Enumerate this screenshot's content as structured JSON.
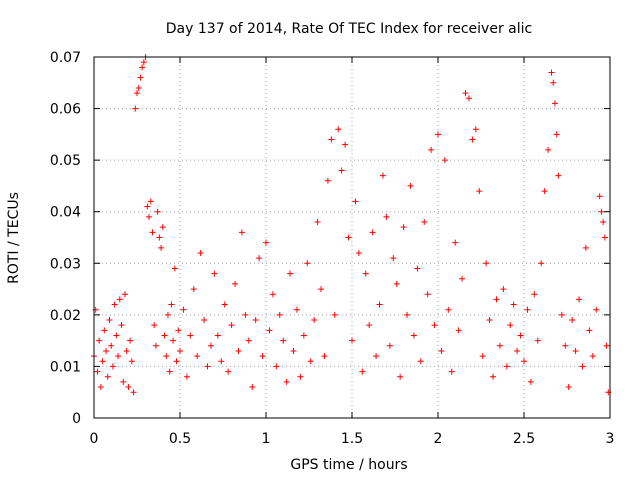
{
  "chart_data": {
    "type": "scatter",
    "title": "Day 137 of 2014, Rate Of TEC Index for receiver alic",
    "xlabel": "GPS time / hours",
    "ylabel": "ROTI / TECUs",
    "xlim": [
      0,
      3
    ],
    "ylim": [
      0,
      0.07
    ],
    "xticks": [
      0,
      0.5,
      1,
      1.5,
      2,
      2.5,
      3
    ],
    "xtick_labels": [
      "0",
      "0.5",
      "1",
      "1.5",
      "2",
      "2.5",
      "3"
    ],
    "yticks": [
      0,
      0.01,
      0.02,
      0.03,
      0.04,
      0.05,
      0.06,
      0.07
    ],
    "ytick_labels": [
      "0",
      "0.01",
      "0.02",
      "0.03",
      "0.04",
      "0.05",
      "0.06",
      "0.07"
    ],
    "grid": true,
    "marker": "+",
    "color": "#ff0000",
    "series": [
      {
        "name": "ROTI",
        "points": [
          [
            0.0,
            0.012
          ],
          [
            0.01,
            0.021
          ],
          [
            0.02,
            0.009
          ],
          [
            0.03,
            0.015
          ],
          [
            0.04,
            0.006
          ],
          [
            0.05,
            0.011
          ],
          [
            0.06,
            0.017
          ],
          [
            0.07,
            0.013
          ],
          [
            0.08,
            0.008
          ],
          [
            0.09,
            0.019
          ],
          [
            0.1,
            0.014
          ],
          [
            0.11,
            0.01
          ],
          [
            0.12,
            0.022
          ],
          [
            0.13,
            0.016
          ],
          [
            0.14,
            0.012
          ],
          [
            0.15,
            0.023
          ],
          [
            0.16,
            0.018
          ],
          [
            0.17,
            0.007
          ],
          [
            0.18,
            0.024
          ],
          [
            0.19,
            0.013
          ],
          [
            0.2,
            0.006
          ],
          [
            0.21,
            0.015
          ],
          [
            0.22,
            0.011
          ],
          [
            0.23,
            0.005
          ],
          [
            0.24,
            0.06
          ],
          [
            0.25,
            0.063
          ],
          [
            0.26,
            0.064
          ],
          [
            0.27,
            0.066
          ],
          [
            0.28,
            0.068
          ],
          [
            0.29,
            0.069
          ],
          [
            0.3,
            0.07
          ],
          [
            0.31,
            0.041
          ],
          [
            0.32,
            0.039
          ],
          [
            0.33,
            0.042
          ],
          [
            0.34,
            0.036
          ],
          [
            0.35,
            0.018
          ],
          [
            0.36,
            0.014
          ],
          [
            0.37,
            0.04
          ],
          [
            0.38,
            0.035
          ],
          [
            0.39,
            0.033
          ],
          [
            0.4,
            0.037
          ],
          [
            0.41,
            0.016
          ],
          [
            0.42,
            0.012
          ],
          [
            0.43,
            0.02
          ],
          [
            0.44,
            0.009
          ],
          [
            0.45,
            0.022
          ],
          [
            0.46,
            0.015
          ],
          [
            0.47,
            0.029
          ],
          [
            0.48,
            0.011
          ],
          [
            0.49,
            0.017
          ],
          [
            0.5,
            0.013
          ],
          [
            0.52,
            0.021
          ],
          [
            0.54,
            0.008
          ],
          [
            0.56,
            0.016
          ],
          [
            0.58,
            0.025
          ],
          [
            0.6,
            0.012
          ],
          [
            0.62,
            0.032
          ],
          [
            0.64,
            0.019
          ],
          [
            0.66,
            0.01
          ],
          [
            0.68,
            0.014
          ],
          [
            0.7,
            0.028
          ],
          [
            0.72,
            0.016
          ],
          [
            0.74,
            0.011
          ],
          [
            0.76,
            0.022
          ],
          [
            0.78,
            0.009
          ],
          [
            0.8,
            0.018
          ],
          [
            0.82,
            0.026
          ],
          [
            0.84,
            0.013
          ],
          [
            0.86,
            0.036
          ],
          [
            0.88,
            0.02
          ],
          [
            0.9,
            0.015
          ],
          [
            0.92,
            0.006
          ],
          [
            0.94,
            0.019
          ],
          [
            0.96,
            0.031
          ],
          [
            0.98,
            0.012
          ],
          [
            1.0,
            0.034
          ],
          [
            1.02,
            0.017
          ],
          [
            1.04,
            0.024
          ],
          [
            1.06,
            0.01
          ],
          [
            1.08,
            0.02
          ],
          [
            1.1,
            0.015
          ],
          [
            1.12,
            0.007
          ],
          [
            1.14,
            0.028
          ],
          [
            1.16,
            0.013
          ],
          [
            1.18,
            0.021
          ],
          [
            1.2,
            0.008
          ],
          [
            1.22,
            0.016
          ],
          [
            1.24,
            0.03
          ],
          [
            1.26,
            0.011
          ],
          [
            1.28,
            0.019
          ],
          [
            1.3,
            0.038
          ],
          [
            1.32,
            0.025
          ],
          [
            1.34,
            0.012
          ],
          [
            1.36,
            0.046
          ],
          [
            1.38,
            0.054
          ],
          [
            1.4,
            0.02
          ],
          [
            1.42,
            0.056
          ],
          [
            1.44,
            0.048
          ],
          [
            1.46,
            0.053
          ],
          [
            1.48,
            0.035
          ],
          [
            1.5,
            0.015
          ],
          [
            1.52,
            0.042
          ],
          [
            1.54,
            0.032
          ],
          [
            1.56,
            0.009
          ],
          [
            1.58,
            0.028
          ],
          [
            1.6,
            0.018
          ],
          [
            1.62,
            0.036
          ],
          [
            1.64,
            0.012
          ],
          [
            1.66,
            0.022
          ],
          [
            1.68,
            0.047
          ],
          [
            1.7,
            0.039
          ],
          [
            1.72,
            0.014
          ],
          [
            1.74,
            0.031
          ],
          [
            1.76,
            0.026
          ],
          [
            1.78,
            0.008
          ],
          [
            1.8,
            0.037
          ],
          [
            1.82,
            0.02
          ],
          [
            1.84,
            0.045
          ],
          [
            1.86,
            0.016
          ],
          [
            1.88,
            0.029
          ],
          [
            1.9,
            0.011
          ],
          [
            1.92,
            0.038
          ],
          [
            1.94,
            0.024
          ],
          [
            1.96,
            0.052
          ],
          [
            1.98,
            0.018
          ],
          [
            2.0,
            0.055
          ],
          [
            2.02,
            0.013
          ],
          [
            2.04,
            0.05
          ],
          [
            2.06,
            0.021
          ],
          [
            2.08,
            0.009
          ],
          [
            2.1,
            0.034
          ],
          [
            2.12,
            0.017
          ],
          [
            2.14,
            0.027
          ],
          [
            2.16,
            0.063
          ],
          [
            2.18,
            0.062
          ],
          [
            2.2,
            0.054
          ],
          [
            2.22,
            0.056
          ],
          [
            2.24,
            0.044
          ],
          [
            2.26,
            0.012
          ],
          [
            2.28,
            0.03
          ],
          [
            2.3,
            0.019
          ],
          [
            2.32,
            0.008
          ],
          [
            2.34,
            0.023
          ],
          [
            2.36,
            0.014
          ],
          [
            2.38,
            0.025
          ],
          [
            2.4,
            0.01
          ],
          [
            2.42,
            0.018
          ],
          [
            2.44,
            0.022
          ],
          [
            2.46,
            0.013
          ],
          [
            2.48,
            0.016
          ],
          [
            2.5,
            0.011
          ],
          [
            2.52,
            0.021
          ],
          [
            2.54,
            0.007
          ],
          [
            2.56,
            0.024
          ],
          [
            2.58,
            0.015
          ],
          [
            2.6,
            0.03
          ],
          [
            2.62,
            0.044
          ],
          [
            2.64,
            0.052
          ],
          [
            2.66,
            0.067
          ],
          [
            2.67,
            0.065
          ],
          [
            2.68,
            0.061
          ],
          [
            2.69,
            0.055
          ],
          [
            2.7,
            0.047
          ],
          [
            2.72,
            0.02
          ],
          [
            2.74,
            0.014
          ],
          [
            2.76,
            0.006
          ],
          [
            2.78,
            0.019
          ],
          [
            2.8,
            0.013
          ],
          [
            2.82,
            0.023
          ],
          [
            2.84,
            0.01
          ],
          [
            2.86,
            0.033
          ],
          [
            2.88,
            0.017
          ],
          [
            2.9,
            0.012
          ],
          [
            2.92,
            0.021
          ],
          [
            2.94,
            0.043
          ],
          [
            2.95,
            0.04
          ],
          [
            2.96,
            0.038
          ],
          [
            2.97,
            0.035
          ],
          [
            2.98,
            0.014
          ],
          [
            2.99,
            0.005
          ]
        ]
      }
    ]
  }
}
